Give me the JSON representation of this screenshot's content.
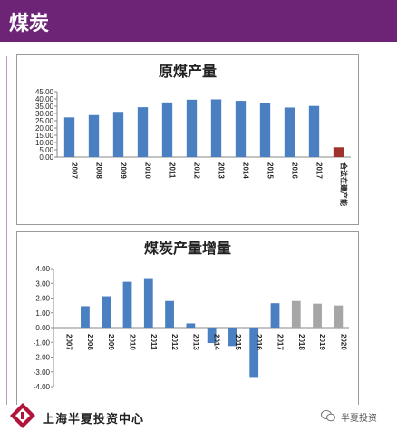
{
  "header": {
    "title": "煤炭"
  },
  "footer": {
    "company": "上海半夏投资中心",
    "wechat_account": "半夏投资"
  },
  "colors": {
    "header_bg": "#6d2477",
    "bar_blue": "#4a7fc1",
    "bar_red": "#a0322e",
    "bar_gray": "#a6a6a6"
  },
  "chart_data": [
    {
      "type": "bar",
      "title": "原煤产量",
      "categories": [
        "2007",
        "2008",
        "2009",
        "2010",
        "2011",
        "2012",
        "2013",
        "2014",
        "2015",
        "2016",
        "2017",
        "合法在建产能"
      ],
      "values": [
        27.3,
        28.9,
        31.1,
        34.3,
        37.6,
        39.5,
        39.7,
        38.7,
        37.5,
        34.1,
        35.2,
        6.7
      ],
      "bar_colors": [
        "blue",
        "blue",
        "blue",
        "blue",
        "blue",
        "blue",
        "blue",
        "blue",
        "blue",
        "blue",
        "blue",
        "red"
      ],
      "ylim": [
        0,
        45
      ],
      "yticks": [
        "0.00",
        "5.00",
        "10.00",
        "15.00",
        "20.00",
        "25.00",
        "30.00",
        "35.00",
        "40.00",
        "45.00"
      ],
      "grid": false
    },
    {
      "type": "bar",
      "title": "煤炭产量增量",
      "categories": [
        "2007",
        "2008",
        "2009",
        "2010",
        "2011",
        "2012",
        "2013",
        "2014",
        "2015",
        "2016",
        "2017",
        "2018",
        "2019",
        "2020"
      ],
      "values": [
        0,
        1.45,
        2.12,
        3.1,
        3.35,
        1.8,
        0.28,
        -1.05,
        -1.25,
        -3.35,
        1.65,
        1.8,
        1.62,
        1.5
      ],
      "bar_colors": [
        "blue",
        "blue",
        "blue",
        "blue",
        "blue",
        "blue",
        "blue",
        "blue",
        "blue",
        "blue",
        "blue",
        "gray",
        "gray",
        "gray"
      ],
      "ylim": [
        -4,
        4
      ],
      "yticks": [
        "-4.00",
        "-3.00",
        "-2.00",
        "-1.00",
        "0.00",
        "1.00",
        "2.00",
        "3.00",
        "4.00"
      ],
      "grid": false
    }
  ]
}
